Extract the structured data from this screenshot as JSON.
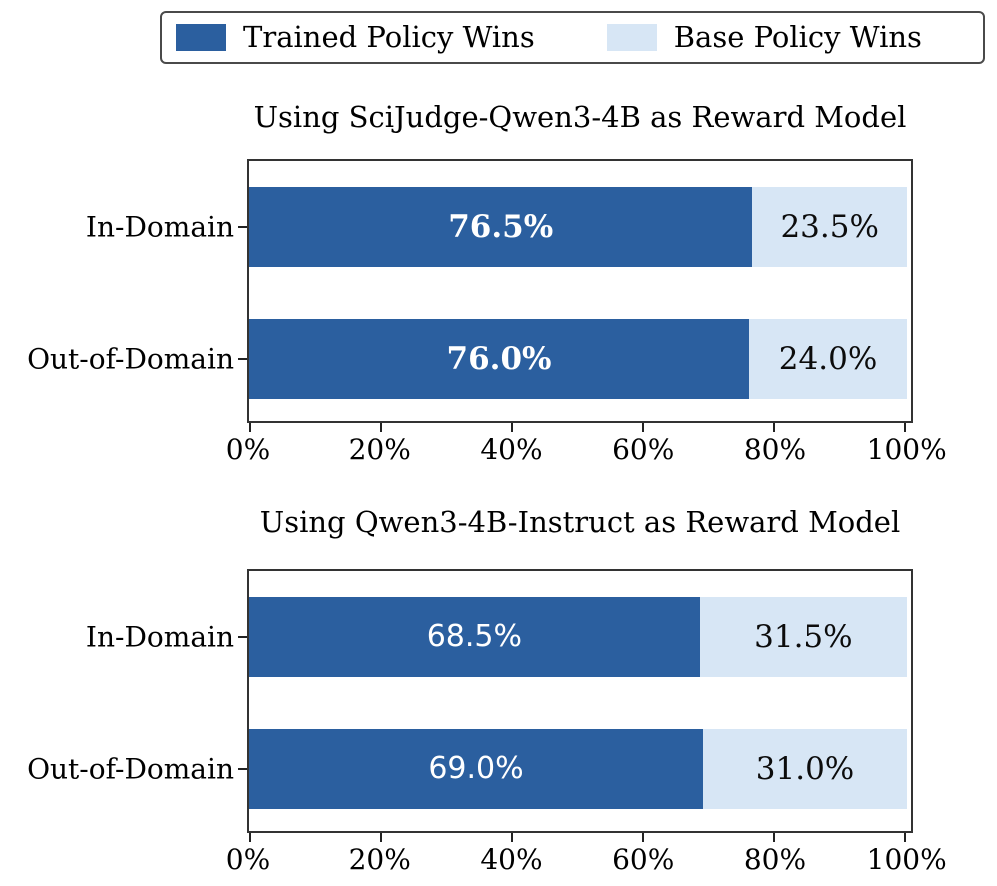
{
  "colors": {
    "trained": "#2b5f9f",
    "base": "#d7e6f5",
    "axis": "#333333"
  },
  "legend": {
    "items": [
      {
        "label": "Trained Policy Wins",
        "series": "trained"
      },
      {
        "label": "Base Policy Wins",
        "series": "base"
      }
    ]
  },
  "chart_data": [
    {
      "type": "bar",
      "orientation": "horizontal",
      "stacked": true,
      "title": "Using SciJudge-Qwen3-4B as Reward Model",
      "categories": [
        "In-Domain",
        "Out-of-Domain"
      ],
      "series": [
        {
          "name": "Trained Policy Wins",
          "values": [
            76.5,
            76.0
          ],
          "labels": [
            "76.5%",
            "76.0%"
          ]
        },
        {
          "name": "Base Policy Wins",
          "values": [
            23.5,
            24.0
          ],
          "labels": [
            "23.5%",
            "24.0%"
          ]
        }
      ],
      "x_ticks": [
        0,
        20,
        40,
        60,
        80,
        100
      ],
      "x_tick_labels": [
        "0%",
        "20%",
        "40%",
        "60%",
        "80%",
        "100%"
      ],
      "xlim": [
        0,
        100
      ],
      "value_label_style": "bold-serif",
      "legend_position": "top",
      "grid": false
    },
    {
      "type": "bar",
      "orientation": "horizontal",
      "stacked": true,
      "title": "Using Qwen3-4B-Instruct as Reward Model",
      "categories": [
        "In-Domain",
        "Out-of-Domain"
      ],
      "series": [
        {
          "name": "Trained Policy Wins",
          "values": [
            68.5,
            69.0
          ],
          "labels": [
            "68.5%",
            "69.0%"
          ]
        },
        {
          "name": "Base Policy Wins",
          "values": [
            31.5,
            31.0
          ],
          "labels": [
            "31.5%",
            "31.0%"
          ]
        }
      ],
      "x_ticks": [
        0,
        20,
        40,
        60,
        80,
        100
      ],
      "x_tick_labels": [
        "0%",
        "20%",
        "40%",
        "60%",
        "80%",
        "100%"
      ],
      "xlim": [
        0,
        100
      ],
      "value_label_style": "regular-sans",
      "legend_position": "top",
      "grid": false
    }
  ]
}
